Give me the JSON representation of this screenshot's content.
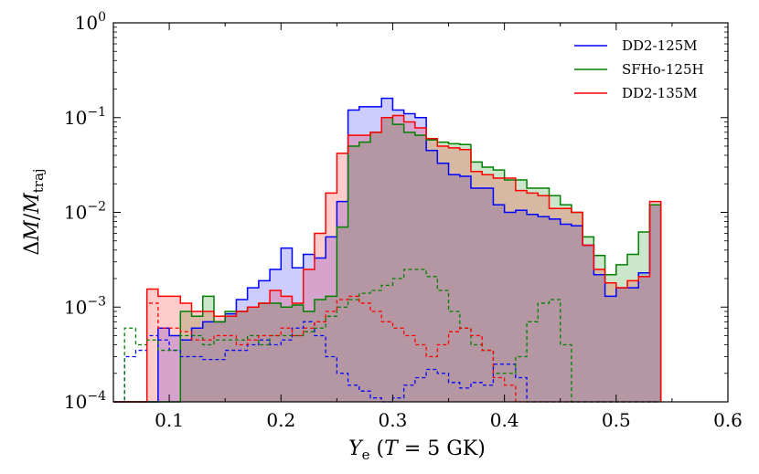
{
  "chart_data": {
    "type": "histogram",
    "title": "",
    "xlabel": "Y_e (T = 5 GK)",
    "ylabel": "ΔM/M_traj",
    "xlim": [
      0.05,
      0.6
    ],
    "ylim": [
      0.0001,
      1
    ],
    "yscale": "log",
    "grid": false,
    "legend_position": "top-right",
    "x_ticks": [
      {
        "value": 0.1,
        "label": "0.1"
      },
      {
        "value": 0.2,
        "label": "0.2"
      },
      {
        "value": 0.3,
        "label": "0.3"
      },
      {
        "value": 0.4,
        "label": "0.4"
      },
      {
        "value": 0.5,
        "label": "0.5"
      },
      {
        "value": 0.6,
        "label": "0.6"
      }
    ],
    "y_ticks": [
      {
        "value": 0.0001,
        "base": "10",
        "exp": "−4"
      },
      {
        "value": 0.001,
        "base": "10",
        "exp": "−3"
      },
      {
        "value": 0.01,
        "base": "10",
        "exp": "−2"
      },
      {
        "value": 0.1,
        "base": "10",
        "exp": "−1"
      },
      {
        "value": 1,
        "base": "10",
        "exp": "0"
      }
    ],
    "bin_edges": [
      0.05,
      0.06,
      0.07,
      0.08,
      0.09,
      0.1,
      0.11,
      0.12,
      0.13,
      0.14,
      0.15,
      0.16,
      0.17,
      0.18,
      0.19,
      0.2,
      0.21,
      0.22,
      0.23,
      0.24,
      0.25,
      0.26,
      0.27,
      0.28,
      0.29,
      0.3,
      0.31,
      0.32,
      0.33,
      0.34,
      0.35,
      0.36,
      0.37,
      0.38,
      0.39,
      0.4,
      0.41,
      0.42,
      0.43,
      0.44,
      0.45,
      0.46,
      0.47,
      0.48,
      0.49,
      0.5,
      0.51,
      0.52,
      0.53,
      0.54
    ],
    "series": [
      {
        "name": "DD2-125M",
        "color": "#0000ff",
        "style": "solid",
        "values": [
          0,
          0,
          0,
          0,
          0.0006,
          0.0005,
          0.00045,
          0.0006,
          0.0007,
          0.0007,
          0.00085,
          0.0012,
          0.0016,
          0.0019,
          0.0025,
          0.0042,
          0.0026,
          0.0036,
          0.0033,
          0.0055,
          0.013,
          0.12,
          0.13,
          0.13,
          0.16,
          0.12,
          0.11,
          0.1,
          0.045,
          0.033,
          0.025,
          0.024,
          0.018,
          0.018,
          0.012,
          0.01,
          0.0105,
          0.0095,
          0.009,
          0.0085,
          0.0075,
          0.0072,
          0.0045,
          0.0022,
          0.0013,
          0.0016,
          0.0016,
          0.0023,
          0.012
        ]
      },
      {
        "name": "SFHo-125H",
        "color": "#008000",
        "style": "solid",
        "values": [
          0,
          0,
          0,
          0,
          0,
          0.0001,
          0.0009,
          0.0008,
          0.0013,
          0.0007,
          0.0009,
          0.0009,
          0.001,
          0.0011,
          0.0011,
          0.001,
          0.00105,
          0.0009,
          0.0012,
          0.0013,
          0.007,
          0.05,
          0.055,
          0.07,
          0.1,
          0.085,
          0.07,
          0.065,
          0.058,
          0.055,
          0.053,
          0.052,
          0.034,
          0.03,
          0.028,
          0.022,
          0.022,
          0.018,
          0.018,
          0.015,
          0.012,
          0.01,
          0.0055,
          0.0035,
          0.0022,
          0.0028,
          0.0036,
          0.0062,
          0.012
        ]
      },
      {
        "name": "DD2-135M",
        "color": "#ff0000",
        "style": "solid",
        "values": [
          0,
          0,
          0,
          0.00155,
          0.0013,
          0.0013,
          0.0011,
          0.0009,
          0.0009,
          0.0008,
          0.0008,
          0.0009,
          0.001,
          0.0011,
          0.0015,
          0.0013,
          0.0011,
          0.0025,
          0.006,
          0.016,
          0.042,
          0.065,
          0.065,
          0.07,
          0.1,
          0.105,
          0.09,
          0.078,
          0.06,
          0.05,
          0.048,
          0.046,
          0.027,
          0.025,
          0.023,
          0.023,
          0.017,
          0.016,
          0.015,
          0.011,
          0.011,
          0.01,
          0.0045,
          0.0025,
          0.0018,
          0.0016,
          0.0019,
          0.0021,
          0.013
        ]
      },
      {
        "name": "",
        "color": "#0000ff",
        "style": "dashed",
        "values": [
          0.0001,
          0.0003,
          0.00035,
          0.0005,
          0.00045,
          0.00035,
          0.0003,
          0.0003,
          0.00028,
          0.00028,
          0.00035,
          0.00035,
          0.0004,
          0.00045,
          0.0004,
          0.00045,
          0.0006,
          0.0007,
          0.0005,
          0.0003,
          0.0002,
          0.00015,
          0.00013,
          0.00011,
          0.0001,
          0.00011,
          0.00015,
          0.00018,
          0.00022,
          0.0002,
          0.00016,
          0.00014,
          0.00016,
          0.00015,
          0.00025,
          0.00025,
          0.00018,
          0.0001,
          0.0001,
          0.0001,
          0.0001,
          0.0001,
          0.0001,
          0.0001,
          0.0001,
          0.0001,
          0.0001,
          0.0001,
          0.0001
        ]
      },
      {
        "name": "",
        "color": "#008000",
        "style": "dashed",
        "values": [
          0.0001,
          0.0006,
          0.0004,
          0.00045,
          0.00035,
          0.00035,
          0.0005,
          0.0005,
          0.0004,
          0.00045,
          0.00045,
          0.00045,
          0.0005,
          0.0004,
          0.0005,
          0.0005,
          0.0005,
          0.00055,
          0.0006,
          0.0008,
          0.001,
          0.0012,
          0.0014,
          0.0015,
          0.0017,
          0.002,
          0.0025,
          0.0025,
          0.0021,
          0.0015,
          0.0009,
          0.0006,
          0.0004,
          0.00035,
          0.0002,
          0.0002,
          0.0003,
          0.0007,
          0.0011,
          0.0012,
          0.0004,
          0.0001,
          0.0001,
          0.0001,
          0.0001,
          0.0001,
          0.0001,
          0.0001,
          0.0001
        ]
      },
      {
        "name": "",
        "color": "#ff0000",
        "style": "dashed",
        "values": [
          0.0001,
          0.0001,
          0.0001,
          0.0011,
          0.0006,
          0.0006,
          0.00055,
          0.00045,
          0.00045,
          0.0005,
          0.0005,
          0.0004,
          0.00045,
          0.0005,
          0.0005,
          0.0006,
          0.0005,
          0.0006,
          0.0007,
          0.0009,
          0.0012,
          0.0013,
          0.0011,
          0.0009,
          0.0007,
          0.0006,
          0.0005,
          0.0004,
          0.0003,
          0.0004,
          0.00055,
          0.0006,
          0.0005,
          0.00035,
          0.00018,
          0.00015,
          0.0001,
          0.0001,
          0.0001,
          0.0001,
          0.0001,
          0.0001,
          0.0001,
          0.0001,
          0.0001,
          0.0001,
          0.0001,
          0.0001,
          0.0001
        ]
      }
    ]
  }
}
